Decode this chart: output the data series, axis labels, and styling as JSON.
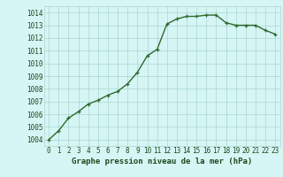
{
  "x": [
    0,
    1,
    2,
    3,
    4,
    5,
    6,
    7,
    8,
    9,
    10,
    11,
    12,
    13,
    14,
    15,
    16,
    17,
    18,
    19,
    20,
    21,
    22,
    23
  ],
  "y": [
    1004.0,
    1004.7,
    1005.7,
    1006.2,
    1006.8,
    1007.1,
    1007.5,
    1007.8,
    1008.4,
    1009.3,
    1010.6,
    1011.1,
    1013.1,
    1013.5,
    1013.7,
    1013.7,
    1013.8,
    1013.8,
    1013.2,
    1013.0,
    1013.0,
    1013.0,
    1012.6,
    1012.3
  ],
  "line_color": "#2d6a2d",
  "marker": "+",
  "marker_size": 3.5,
  "line_width": 1.0,
  "bg_color": "#d6f5f5",
  "grid_color": "#a8d8d0",
  "xlabel": "Graphe pression niveau de la mer (hPa)",
  "xlabel_fontsize": 6.5,
  "xlabel_color": "#1a4a1a",
  "tick_fontsize": 5.5,
  "tick_color": "#1a4a1a",
  "ylim": [
    1003.5,
    1014.5
  ],
  "xlim": [
    -0.5,
    23.5
  ],
  "yticks": [
    1004,
    1005,
    1006,
    1007,
    1008,
    1009,
    1010,
    1011,
    1012,
    1013,
    1014
  ],
  "xticks": [
    0,
    1,
    2,
    3,
    4,
    5,
    6,
    7,
    8,
    9,
    10,
    11,
    12,
    13,
    14,
    15,
    16,
    17,
    18,
    19,
    20,
    21,
    22,
    23
  ]
}
